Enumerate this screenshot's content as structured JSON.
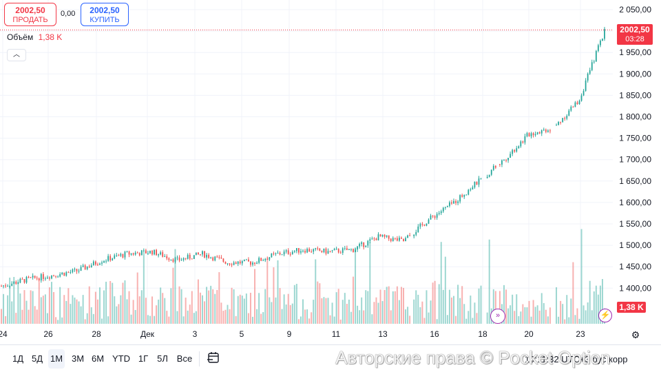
{
  "trade": {
    "sell_price": "2002,50",
    "sell_label": "ПРОДАТЬ",
    "spread": "0,00",
    "buy_price": "2002,50",
    "buy_label": "КУПИТЬ"
  },
  "volume_legend": {
    "label": "Объём",
    "value": "1,38 K"
  },
  "collapse_icon": "chevron-up",
  "last_price_tag": {
    "price": "2002,50",
    "countdown": "03:28"
  },
  "volume_tag": "1,38 K",
  "ranges": [
    "1Д",
    "5Д",
    "1М",
    "3М",
    "6М",
    "YTD",
    "1Г",
    "5Л",
    "Все"
  ],
  "active_range": "1М",
  "time_readout": "19:11:32 UTC+3",
  "time_readout_tail": [
    "рус",
    "корр"
  ],
  "watermark": "Авторские права © Pocket Option",
  "colors": {
    "up": "#26a69a",
    "down": "#ef5350",
    "accent": "#2962ff",
    "sell": "#f23645",
    "event": "#9c27b0"
  },
  "chart_data": {
    "type": "line",
    "style": "candlestick",
    "y_ticks": [
      "2 050,00",
      "2 000,00",
      "1 950,00",
      "1 900,00",
      "1 850,00",
      "1 800,00",
      "1 750,00",
      "1 700,00",
      "1 650,00",
      "1 600,00",
      "1 550,00",
      "1 500,00",
      "1 450,00",
      "1 400,00"
    ],
    "ylim": [
      1350,
      2065
    ],
    "x_ticks": [
      "24",
      "26",
      "28",
      "Дек",
      "3",
      "5",
      "9",
      "11",
      "13",
      "16",
      "18",
      "20",
      "23"
    ],
    "x": [
      "24",
      "25",
      "26",
      "27",
      "28",
      "29",
      "Дек",
      "2",
      "3",
      "4",
      "5",
      "6",
      "9",
      "10",
      "11",
      "12",
      "13",
      "16",
      "17",
      "18",
      "19",
      "20",
      "21",
      "23",
      "24"
    ],
    "series": [
      {
        "values": [
          1405,
          1420,
          1430,
          1440,
          1465,
          1480,
          1485,
          1465,
          1480,
          1460,
          1460,
          1480,
          1490,
          1485,
          1490,
          1520,
          1510,
          1560,
          1600,
          1650,
          1700,
          1760,
          1775,
          1840,
          2002.5
        ]
      }
    ],
    "volume": [
      0.75,
      0.6,
      0.5,
      0.55,
      0.65,
      0.5,
      0.75,
      0.6,
      0.55,
      0.45,
      0.5,
      0.55,
      0.7,
      0.5,
      0.6,
      0.55,
      0.6,
      0.65,
      0.55,
      0.7,
      0.5,
      0.3,
      0.25,
      0.85,
      1.38
    ],
    "last_price": 2002.5,
    "grid": true
  }
}
